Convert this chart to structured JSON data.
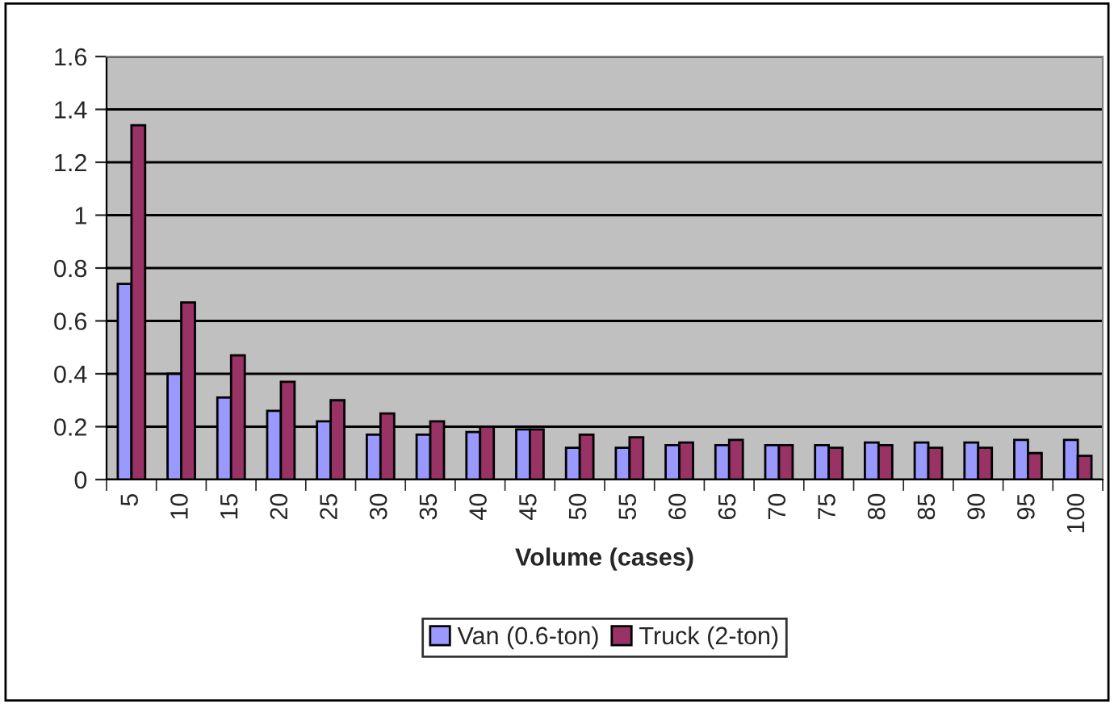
{
  "chart_data": {
    "type": "bar",
    "xlabel": "Volume (cases)",
    "categories": [
      "5",
      "10",
      "15",
      "20",
      "25",
      "30",
      "35",
      "40",
      "45",
      "50",
      "55",
      "60",
      "65",
      "70",
      "75",
      "80",
      "85",
      "90",
      "95",
      "100"
    ],
    "series": [
      {
        "name": "Van (0.6-ton)",
        "color": "#9999ff",
        "values": [
          0.74,
          0.4,
          0.31,
          0.26,
          0.22,
          0.17,
          0.17,
          0.18,
          0.19,
          0.12,
          0.12,
          0.13,
          0.13,
          0.13,
          0.13,
          0.14,
          0.14,
          0.14,
          0.15,
          0.15
        ]
      },
      {
        "name": "Truck (2-ton)",
        "color": "#993366",
        "values": [
          1.34,
          0.67,
          0.47,
          0.37,
          0.3,
          0.25,
          0.22,
          0.2,
          0.19,
          0.17,
          0.16,
          0.14,
          0.15,
          0.13,
          0.12,
          0.13,
          0.12,
          0.12,
          0.1,
          0.09
        ]
      }
    ],
    "ylim": [
      0,
      1.6
    ],
    "yticks": [
      0,
      0.2,
      0.4,
      0.6,
      0.8,
      1,
      1.2,
      1.4,
      1.6
    ],
    "grid": "y",
    "legend": "bottom"
  }
}
